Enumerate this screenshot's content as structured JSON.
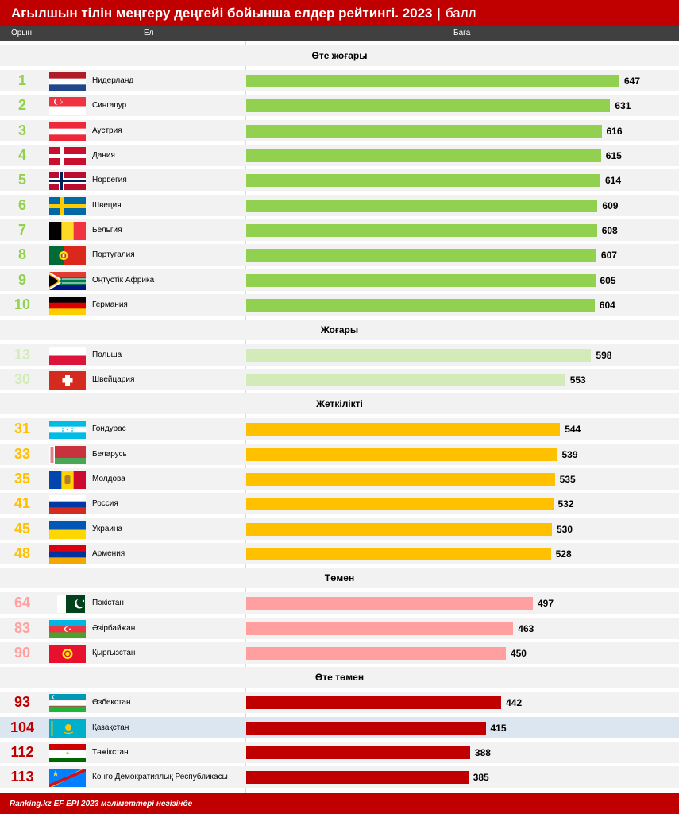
{
  "header": {
    "title": "Ағылшын тілін меңгеру деңгейі бойынша елдер рейтингі. 2023",
    "separator": "|",
    "unit": "балл"
  },
  "columns": {
    "rank": "Орын",
    "country": "Ел",
    "score": "Баға"
  },
  "footer": {
    "source": "Ranking.kz EF EPI 2023 мәліметтері негізінде"
  },
  "colors": {
    "very_high": "#92d050",
    "high": "#d3ebb9",
    "moderate": "#ffc000",
    "low": "#ff9f9f",
    "very_low": "#c00000",
    "highlight_row": "#dce6f1"
  },
  "chart_data": {
    "type": "bar",
    "orientation": "horizontal",
    "title": "Ағылшын тілін меңгеру деңгейі бойынша елдер рейтингі. 2023",
    "unit": "балл",
    "groups": [
      {
        "name": "Өте жоғары",
        "color_key": "very_high",
        "items": [
          {
            "rank": "1",
            "country": "Нидерланд",
            "value": 647,
            "flag": "netherlands"
          },
          {
            "rank": "2",
            "country": "Сингапур",
            "value": 631,
            "flag": "singapore"
          },
          {
            "rank": "3",
            "country": "Аустрия",
            "value": 616,
            "flag": "austria"
          },
          {
            "rank": "4",
            "country": "Дания",
            "value": 615,
            "flag": "denmark"
          },
          {
            "rank": "5",
            "country": "Норвегия",
            "value": 614,
            "flag": "norway"
          },
          {
            "rank": "6",
            "country": "Швеция",
            "value": 609,
            "flag": "sweden"
          },
          {
            "rank": "7",
            "country": "Бельгия",
            "value": 608,
            "flag": "belgium"
          },
          {
            "rank": "8",
            "country": "Португалия",
            "value": 607,
            "flag": "portugal"
          },
          {
            "rank": "9",
            "country": "Оңтүстік Африка",
            "value": 605,
            "flag": "south-africa"
          },
          {
            "rank": "10",
            "country": "Германия",
            "value": 604,
            "flag": "germany"
          }
        ]
      },
      {
        "name": "Жоғары",
        "color_key": "high",
        "items": [
          {
            "rank": "13",
            "country": "Польша",
            "value": 598,
            "flag": "poland"
          },
          {
            "rank": "30",
            "country": "Швейцария",
            "value": 553,
            "flag": "switzerland"
          }
        ]
      },
      {
        "name": "Жеткілікті",
        "color_key": "moderate",
        "items": [
          {
            "rank": "31",
            "country": "Гондурас",
            "value": 544,
            "flag": "honduras"
          },
          {
            "rank": "33",
            "country": "Беларусь",
            "value": 539,
            "flag": "belarus"
          },
          {
            "rank": "35",
            "country": "Молдова",
            "value": 535,
            "flag": "moldova"
          },
          {
            "rank": "41",
            "country": "Россия",
            "value": 532,
            "flag": "russia"
          },
          {
            "rank": "45",
            "country": "Украина",
            "value": 530,
            "flag": "ukraine"
          },
          {
            "rank": "48",
            "country": "Армения",
            "value": 528,
            "flag": "armenia"
          }
        ]
      },
      {
        "name": "Төмен",
        "color_key": "low",
        "items": [
          {
            "rank": "64",
            "country": "Пәкістан",
            "value": 497,
            "flag": "pakistan"
          },
          {
            "rank": "83",
            "country": "Әзірбайжан",
            "value": 463,
            "flag": "azerbaijan"
          },
          {
            "rank": "90",
            "country": "Қырғызстан",
            "value": 450,
            "flag": "kyrgyzstan"
          }
        ]
      },
      {
        "name": "Өте төмен",
        "color_key": "very_low",
        "items": [
          {
            "rank": "93",
            "country": "Өзбекстан",
            "value": 442,
            "flag": "uzbekistan"
          },
          {
            "rank": "104",
            "country": "Қазақстан",
            "value": 415,
            "flag": "kazakhstan",
            "highlight": true
          },
          {
            "rank": "112",
            "country": "Тәжікстан",
            "value": 388,
            "flag": "tajikistan"
          },
          {
            "rank": "113",
            "country": "Конго Демократиялық Республикасы",
            "value": 385,
            "flag": "dr-congo"
          }
        ]
      }
    ]
  }
}
